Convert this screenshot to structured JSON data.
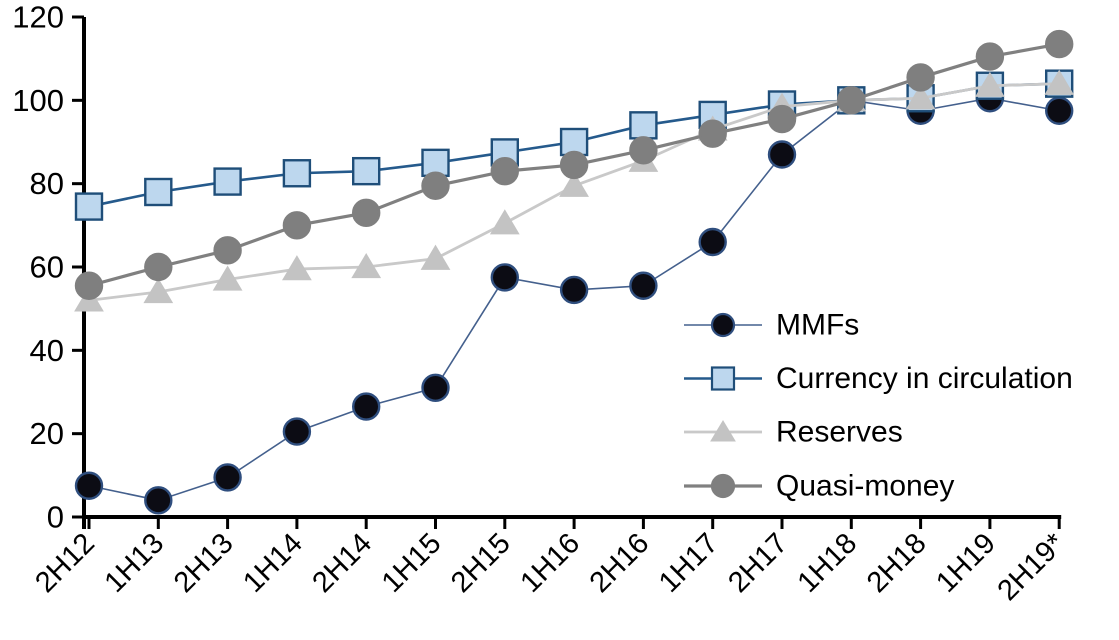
{
  "chart_data": {
    "type": "line",
    "title": "",
    "xlabel": "",
    "ylabel": "",
    "categories": [
      "2H12",
      "1H13",
      "2H13",
      "1H14",
      "2H14",
      "1H15",
      "2H15",
      "1H16",
      "2H16",
      "1H17",
      "2H17",
      "1H18",
      "2H18",
      "1H19",
      "2H19*"
    ],
    "series": [
      {
        "name": "MMFs",
        "marker": "circle",
        "marker_fill": "#0c0c14",
        "marker_stroke": "#2f4e7e",
        "line_color": "#44608d",
        "line_width": 1.6,
        "values": [
          7.5,
          4,
          9.5,
          20.5,
          26.5,
          31,
          57.5,
          54.5,
          55.5,
          66,
          87,
          100,
          97.5,
          100.5,
          97.5
        ]
      },
      {
        "name": "Currency in circulation",
        "marker": "square",
        "marker_fill": "#bdd7ee",
        "marker_stroke": "#1f4e79",
        "line_color": "#255a8c",
        "line_width": 2.6,
        "values": [
          74.5,
          78,
          80.5,
          82.5,
          83,
          85,
          87.5,
          90,
          94,
          96.5,
          99,
          100,
          100.5,
          103.5,
          104
        ]
      },
      {
        "name": "Reserves",
        "marker": "triangle",
        "marker_fill": "#c3c3c3",
        "marker_stroke": "#c3c3c3",
        "line_color": "#c9c9c9",
        "line_width": 2.8,
        "values": [
          52,
          54,
          57,
          59.5,
          60,
          62,
          70.5,
          79.5,
          85.5,
          93,
          98.5,
          100,
          100.5,
          103.5,
          104
        ]
      },
      {
        "name": "Quasi-money",
        "marker": "circle",
        "marker_fill": "#7f7f7f",
        "marker_stroke": "#7f7f7f",
        "line_color": "#808080",
        "line_width": 3.2,
        "values": [
          55.5,
          60,
          64,
          70,
          73,
          79.5,
          83,
          84.5,
          88,
          92,
          95.5,
          100,
          105.5,
          110.5,
          113.5
        ]
      }
    ],
    "legend": {
      "position": "center-right",
      "entries": [
        "MMFs",
        "Currency in circulation",
        "Reserves",
        "Quasi-money"
      ]
    },
    "ylim": [
      0,
      120
    ],
    "yticks": [
      0,
      20,
      40,
      60,
      80,
      100,
      120
    ],
    "x_label_rotation": -45,
    "grid": false,
    "axis_color": "#000000"
  }
}
